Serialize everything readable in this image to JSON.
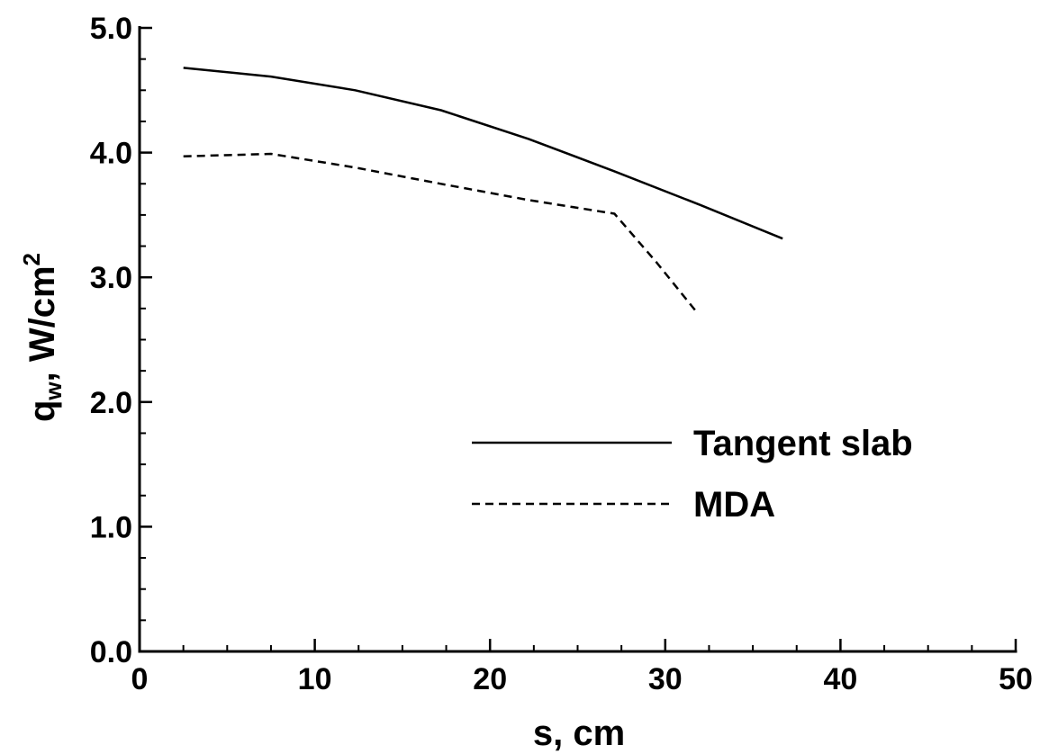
{
  "chart_data": {
    "type": "line",
    "title": "",
    "xlabel": "s, cm",
    "ylabel": {
      "main": "q",
      "subscript": "w",
      "unit": ", W/cm",
      "superscript": "2"
    },
    "xlim": [
      0,
      50
    ],
    "ylim": [
      0,
      5
    ],
    "xticks": {
      "major": [
        0,
        10,
        20,
        30,
        40,
        50
      ],
      "labels": [
        "0",
        "10",
        "20",
        "30",
        "40",
        "50"
      ],
      "minor_step": 2.5
    },
    "yticks": {
      "major": [
        0,
        1,
        2,
        3,
        4,
        5
      ],
      "labels": [
        "0.0",
        "1.0",
        "2.0",
        "3.0",
        "4.0",
        "5.0"
      ],
      "minor_step": 0.25
    },
    "grid": false,
    "legend_position": "center-right",
    "series": [
      {
        "name": "Tangent slab",
        "style": "solid",
        "color": "#000000",
        "x": [
          2.5,
          7.5,
          12.3,
          17.2,
          22.2,
          27.1,
          32.0,
          36.7
        ],
        "y": [
          4.68,
          4.61,
          4.5,
          4.34,
          4.11,
          3.85,
          3.58,
          3.31
        ]
      },
      {
        "name": "MDA",
        "style": "dashed",
        "color": "#000000",
        "x": [
          2.5,
          7.5,
          12.3,
          17.2,
          22.2,
          27.1,
          29.5,
          31.8
        ],
        "y": [
          3.97,
          3.99,
          3.88,
          3.75,
          3.62,
          3.51,
          3.12,
          2.72
        ]
      }
    ]
  }
}
